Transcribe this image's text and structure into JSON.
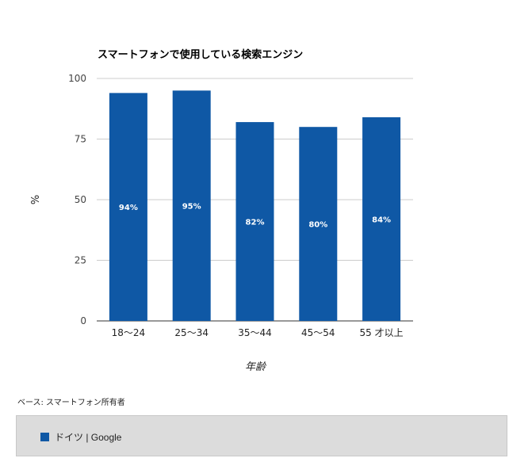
{
  "chart_data": {
    "type": "bar",
    "title": "スマートフォンで使用している検索エンジン",
    "xlabel": "年齢",
    "ylabel": "%",
    "categories": [
      "18〜24",
      "25〜34",
      "35〜44",
      "45〜54",
      "55 才以上"
    ],
    "series": [
      {
        "name": "ドイツ | Google",
        "values": [
          94,
          95,
          82,
          80,
          84
        ],
        "labels": [
          "94%",
          "95%",
          "82%",
          "80%",
          "84%"
        ],
        "color": "#0f58a5"
      }
    ],
    "ylim": [
      0,
      100
    ],
    "yticks": [
      "0",
      "25",
      "50",
      "75",
      "100"
    ],
    "grid": true,
    "legend_position": "bottom"
  },
  "footnote": "ベース: スマートフォン所有者"
}
